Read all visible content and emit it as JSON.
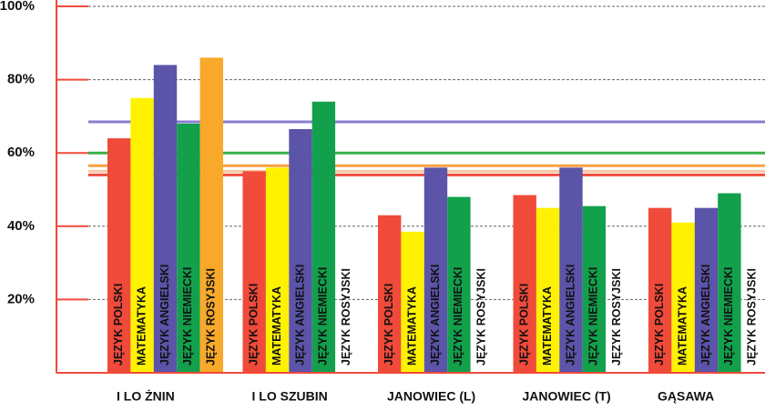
{
  "chart_data": {
    "type": "bar",
    "categories": [
      "I LO ŻNIN",
      "I LO SZUBIN",
      "JANOWIEC (L)",
      "JANOWIEC (T)",
      "GĄSAWA"
    ],
    "series": [
      {
        "name": "JĘZYK POLSKI",
        "color": "#f04a3a",
        "values": [
          64,
          55,
          43,
          48.5,
          45
        ]
      },
      {
        "name": "MATEMATYKA",
        "color": "#fff200",
        "values": [
          75,
          56,
          38.5,
          45,
          41
        ]
      },
      {
        "name": "JĘZYK ANGIELSKI",
        "color": "#5b54a8",
        "values": [
          84,
          66.5,
          56,
          56,
          45
        ]
      },
      {
        "name": "JĘZYK NIEMIECKI",
        "color": "#12a04c",
        "values": [
          68,
          74,
          48,
          45.5,
          49
        ]
      },
      {
        "name": "JĘZYK ROSYJSKI",
        "color": "#f8a92a",
        "values": [
          86,
          null,
          null,
          null,
          null
        ]
      }
    ],
    "reference_lines": [
      {
        "value": 68.5,
        "color": "#8a7fd0"
      },
      {
        "value": 60,
        "color": "#3ab04a"
      },
      {
        "value": 56.5,
        "color": "#f7a040"
      },
      {
        "value": 55,
        "color": "#f8c8a0"
      },
      {
        "value": 54,
        "color": "#f04a3a"
      }
    ],
    "ylim": [
      0,
      100
    ],
    "yticks": [
      {
        "value": 20,
        "label": "20%"
      },
      {
        "value": 40,
        "label": "40%"
      },
      {
        "value": 60,
        "label": "60%"
      },
      {
        "value": 80,
        "label": "80%"
      },
      {
        "value": 100,
        "label": "100%"
      }
    ],
    "grid": true
  }
}
